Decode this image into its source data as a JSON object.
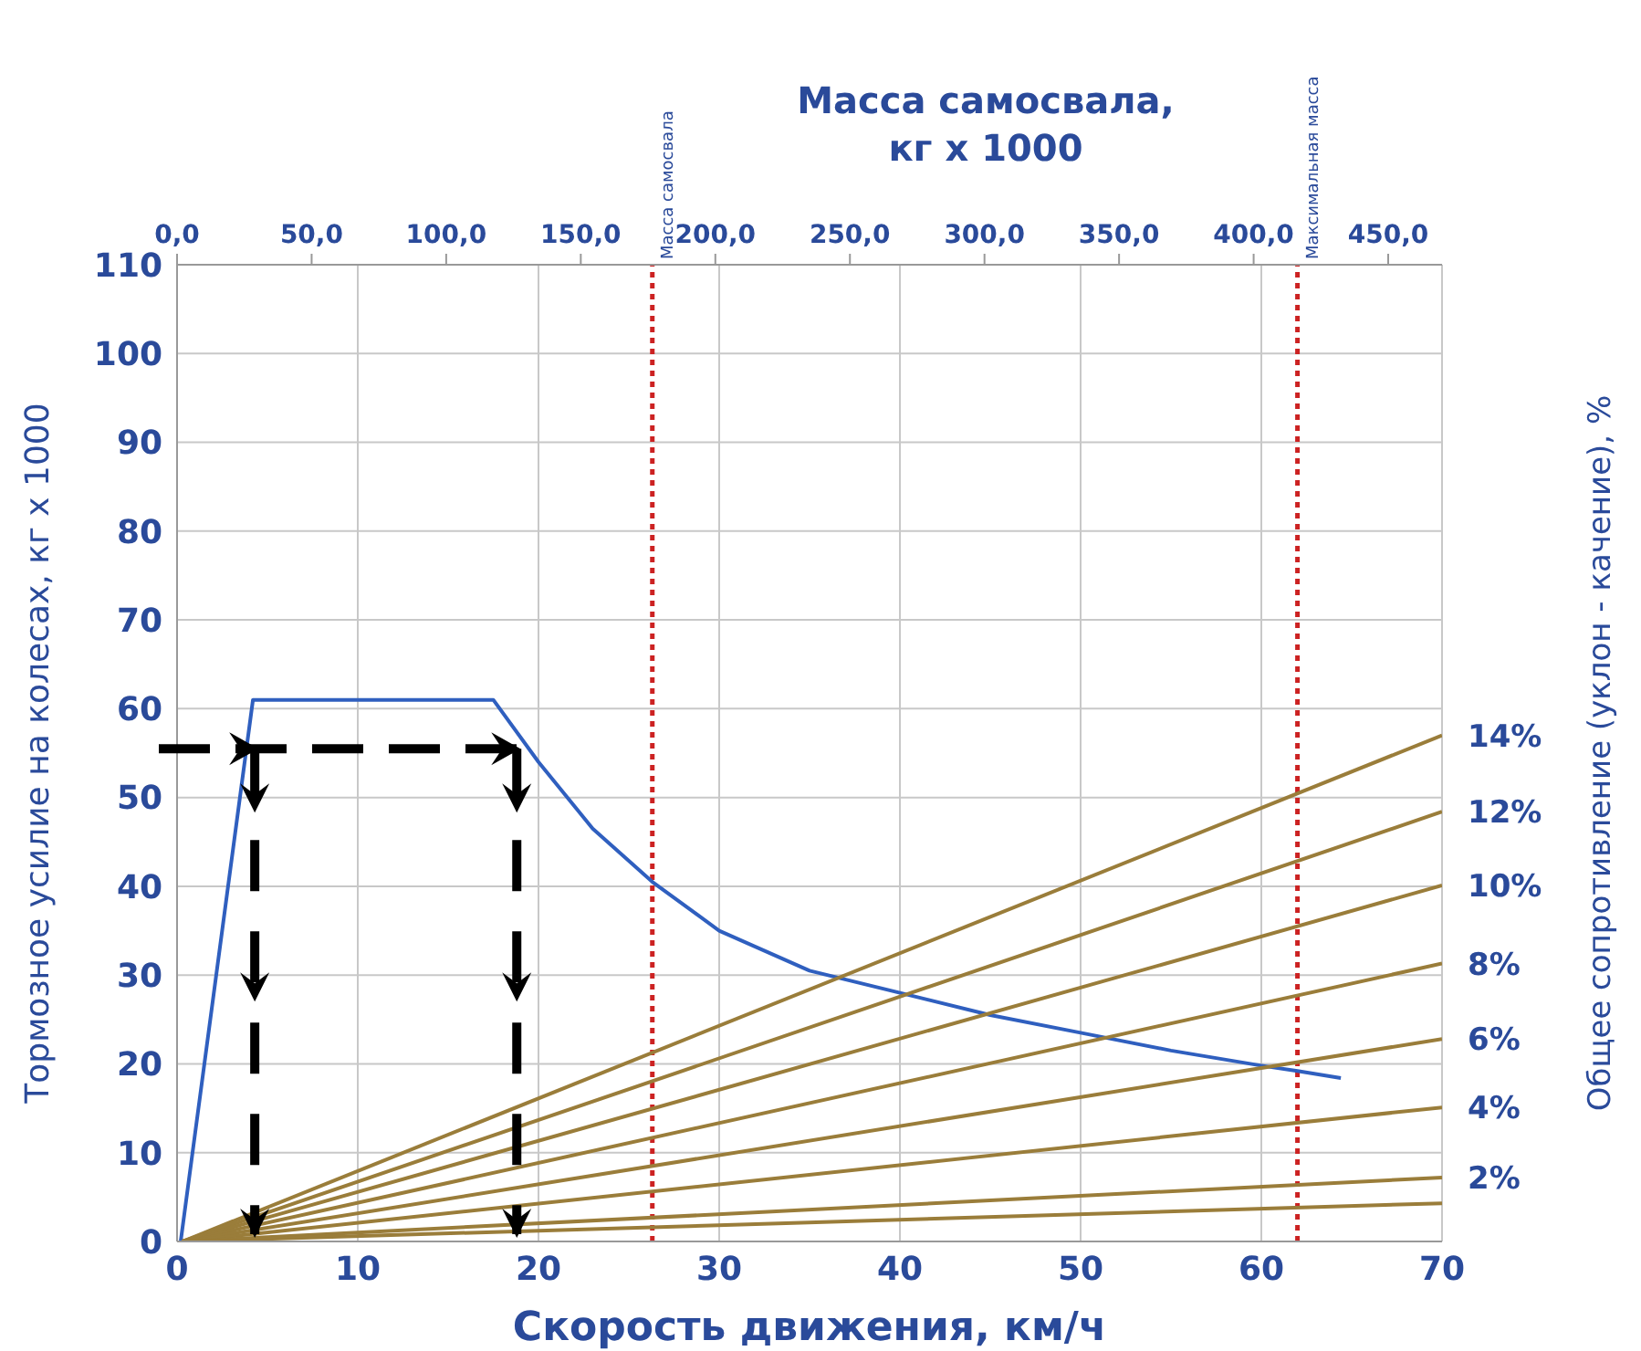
{
  "chart_data": {
    "type": "line",
    "x2label": "Масса самосвала, кг х 1000",
    "xlabel": "Скорость движения, км/ч",
    "ylabel": "Тормозное усилие на колесах, кг х 1000",
    "y2label": "Общее сопротивление (уклон - качение), %",
    "xlim": [
      0,
      70
    ],
    "xticks": [
      0,
      10,
      20,
      30,
      40,
      50,
      60,
      70
    ],
    "ylim": [
      0,
      110
    ],
    "yticks": [
      0,
      10,
      20,
      30,
      40,
      50,
      60,
      70,
      80,
      90,
      100,
      110
    ],
    "x2lim": [
      0,
      470
    ],
    "x2ticks": [
      {
        "value": 0,
        "label": "0,0"
      },
      {
        "value": 50,
        "label": "50,0"
      },
      {
        "value": 100,
        "label": "100,0"
      },
      {
        "value": 150,
        "label": "150,0"
      },
      {
        "value": 200,
        "label": "200,0"
      },
      {
        "value": 250,
        "label": "250,0"
      },
      {
        "value": 300,
        "label": "300,0"
      },
      {
        "value": 350,
        "label": "350,0"
      },
      {
        "value": 400,
        "label": "400,0"
      },
      {
        "value": 450,
        "label": "450,0"
      }
    ],
    "grid": true,
    "marker": "none",
    "line_style": "solid",
    "ref_lines": [
      {
        "axis": "x",
        "value": 26.3,
        "label": "Масса самосвала",
        "color": "#cc2222",
        "line_style": "dotted"
      },
      {
        "axis": "x",
        "value": 62,
        "label": "Максимальная масса",
        "color": "#cc2222",
        "line_style": "dotted"
      }
    ],
    "series": [
      {
        "color": "#2f5fbf",
        "x": [
          0.2,
          4.2,
          17.5,
          20,
          23,
          26.3,
          30,
          35,
          40,
          45,
          50,
          55,
          60,
          62,
          64.4
        ],
        "values": [
          0,
          61,
          61,
          54,
          46.5,
          40.5,
          35,
          30.5,
          28,
          25.5,
          23.5,
          21.5,
          19.8,
          19.2,
          18.4
        ]
      },
      {
        "name": "14%",
        "color": "#9a7d3a",
        "x": [
          0.3,
          70
        ],
        "values": [
          0,
          57
        ]
      },
      {
        "name": "12%",
        "color": "#9a7d3a",
        "x": [
          0.3,
          70
        ],
        "values": [
          0,
          48.4
        ]
      },
      {
        "name": "10%",
        "color": "#9a7d3a",
        "x": [
          0.3,
          70
        ],
        "values": [
          0,
          40.1
        ]
      },
      {
        "name": "8%",
        "color": "#9a7d3a",
        "x": [
          0.3,
          70
        ],
        "values": [
          0,
          31.3
        ]
      },
      {
        "name": "6%",
        "color": "#9a7d3a",
        "x": [
          0.3,
          70
        ],
        "values": [
          0,
          22.8
        ]
      },
      {
        "name": "4%",
        "color": "#9a7d3a",
        "x": [
          0.3,
          70
        ],
        "values": [
          0,
          15.1
        ]
      },
      {
        "name": "2%",
        "color": "#9a7d3a",
        "x": [
          0.3,
          70
        ],
        "values": [
          0,
          7.2
        ]
      },
      {
        "color": "#9a7d3a",
        "x": [
          0.3,
          70
        ],
        "values": [
          0,
          4.3
        ]
      }
    ]
  }
}
